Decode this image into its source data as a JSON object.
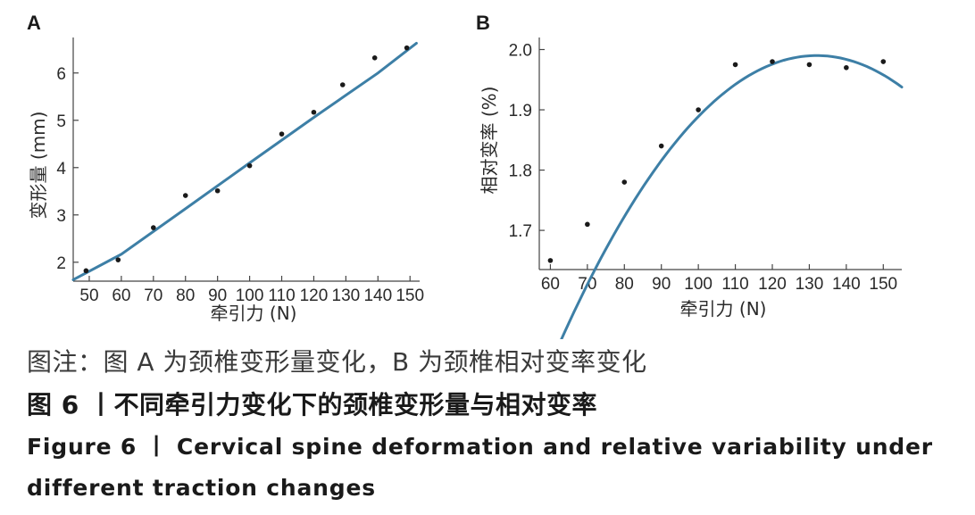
{
  "chart_data": [
    {
      "type": "scatter",
      "panel_label": "A",
      "xlabel": "牵引力 (N)",
      "ylabel": "变形量 (mm)",
      "x_ticks": [
        50,
        60,
        70,
        80,
        90,
        100,
        110,
        120,
        130,
        140,
        150
      ],
      "y_ticks": [
        2,
        3,
        4,
        5,
        6
      ],
      "xlim": [
        45,
        153
      ],
      "ylim": [
        1.6,
        6.75
      ],
      "points": {
        "x": [
          49,
          59,
          70,
          80,
          90,
          100,
          110,
          120,
          129,
          139,
          149
        ],
        "y": [
          1.82,
          2.05,
          2.73,
          3.41,
          3.51,
          4.04,
          4.71,
          5.17,
          5.75,
          6.32,
          6.53
        ]
      },
      "fit_line": {
        "x": [
          45,
          60,
          80,
          100,
          120,
          140,
          152
        ],
        "y": [
          1.63,
          2.17,
          3.13,
          4.1,
          5.06,
          6.0,
          6.63
        ]
      }
    },
    {
      "type": "scatter",
      "panel_label": "B",
      "xlabel": "牵引力 (N)",
      "ylabel": "相对变率 (%)",
      "x_ticks": [
        60,
        70,
        80,
        90,
        100,
        110,
        120,
        130,
        140,
        150
      ],
      "y_ticks": [
        "1.7",
        "1.8",
        "1.9",
        "2.0"
      ],
      "xlim": [
        57,
        155
      ],
      "ylim": [
        1.635,
        2.02
      ],
      "points": {
        "x": [
          60,
          70,
          80,
          90,
          100,
          110,
          120,
          130,
          140,
          150
        ],
        "y": [
          1.65,
          1.71,
          1.78,
          1.84,
          1.9,
          1.975,
          1.98,
          1.975,
          1.97,
          1.98
        ]
      },
      "fit_curve": {
        "vertex_x": 132,
        "vertex_y": 1.99,
        "a": -9.88e-05,
        "x_range": [
          60.5,
          155
        ]
      }
    }
  ],
  "caption": {
    "note": "图注：图 A 为颈椎变形量变化，B 为颈椎相对变率变化",
    "cn_title": "图 6 丨不同牵引力变化下的颈椎变形量与相对变率",
    "en_title": "Figure 6 丨 Cervical spine deformation and relative variability under different traction changes"
  },
  "colors": {
    "fit_line": "#3d7fa6",
    "points": "#1a1a1a"
  }
}
